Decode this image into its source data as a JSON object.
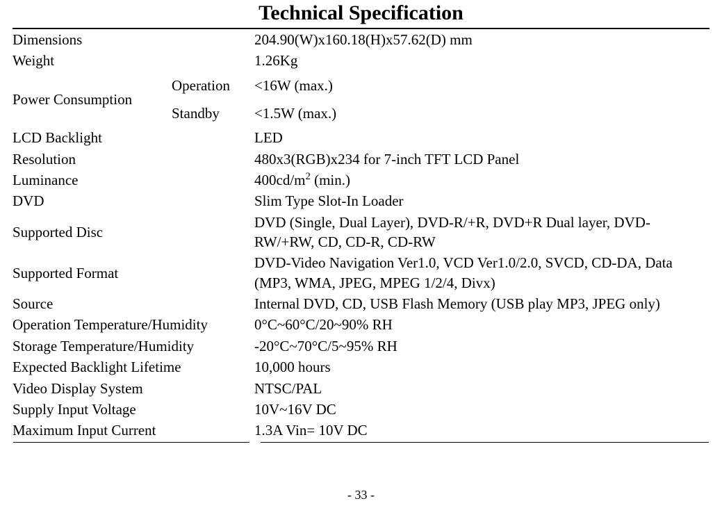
{
  "title": "Technical Specification",
  "page_number": "- 33 -",
  "font_family": "Times New Roman",
  "colors": {
    "text": "#000000",
    "background": "#ffffff",
    "rule": "#000000"
  },
  "rows": {
    "dimensions": {
      "label": "Dimensions",
      "value": "204.90(W)x160.18(H)x57.62(D) mm"
    },
    "weight": {
      "label": "Weight",
      "value": "1.26Kg"
    },
    "power": {
      "label": "Power Consumption"
    },
    "power_op": {
      "sublabel": "Operation",
      "value": "<16W (max.)"
    },
    "power_sb": {
      "sublabel": "Standby",
      "value": "<1.5W (max.)"
    },
    "lcd": {
      "label": "LCD Backlight",
      "value": "LED"
    },
    "resolution": {
      "label": "Resolution",
      "value": "480x3(RGB)x234 for 7-inch TFT LCD Panel"
    },
    "luminance": {
      "label": "Luminance",
      "value_html": "400cd/m<sup>2</sup> (min.)"
    },
    "dvd": {
      "label": "DVD",
      "value": "Slim Type Slot-In Loader"
    },
    "disc": {
      "label": "Supported Disc",
      "value": "DVD (Single, Dual Layer), DVD-R/+R, DVD+R Dual layer, DVD-RW/+RW, CD, CD-R, CD-RW"
    },
    "format": {
      "label": "Supported Format",
      "value": "DVD-Video Navigation Ver1.0, VCD Ver1.0/2.0, SVCD, CD-DA, Data (MP3, WMA, JPEG, MPEG 1/2/4, Divx)"
    },
    "source": {
      "label": "Source",
      "value": "Internal DVD, CD, USB Flash Memory (USB play MP3, JPEG only)"
    },
    "op_temp": {
      "label": "Operation Temperature/Humidity",
      "value": "0°C~60°C/20~90% RH"
    },
    "st_temp": {
      "label": "Storage Temperature/Humidity",
      "value": "-20°C~70°C/5~95% RH"
    },
    "backlight_life": {
      "label": "Expected Backlight Lifetime",
      "value": "10,000 hours"
    },
    "video_sys": {
      "label": "Video Display System",
      "value": "NTSC/PAL"
    },
    "supply_v": {
      "label": "Supply Input Voltage",
      "value": "10V~16V DC"
    },
    "max_current": {
      "label": "Maximum Input Current",
      "value": "1.3A Vin= 10V DC"
    }
  }
}
